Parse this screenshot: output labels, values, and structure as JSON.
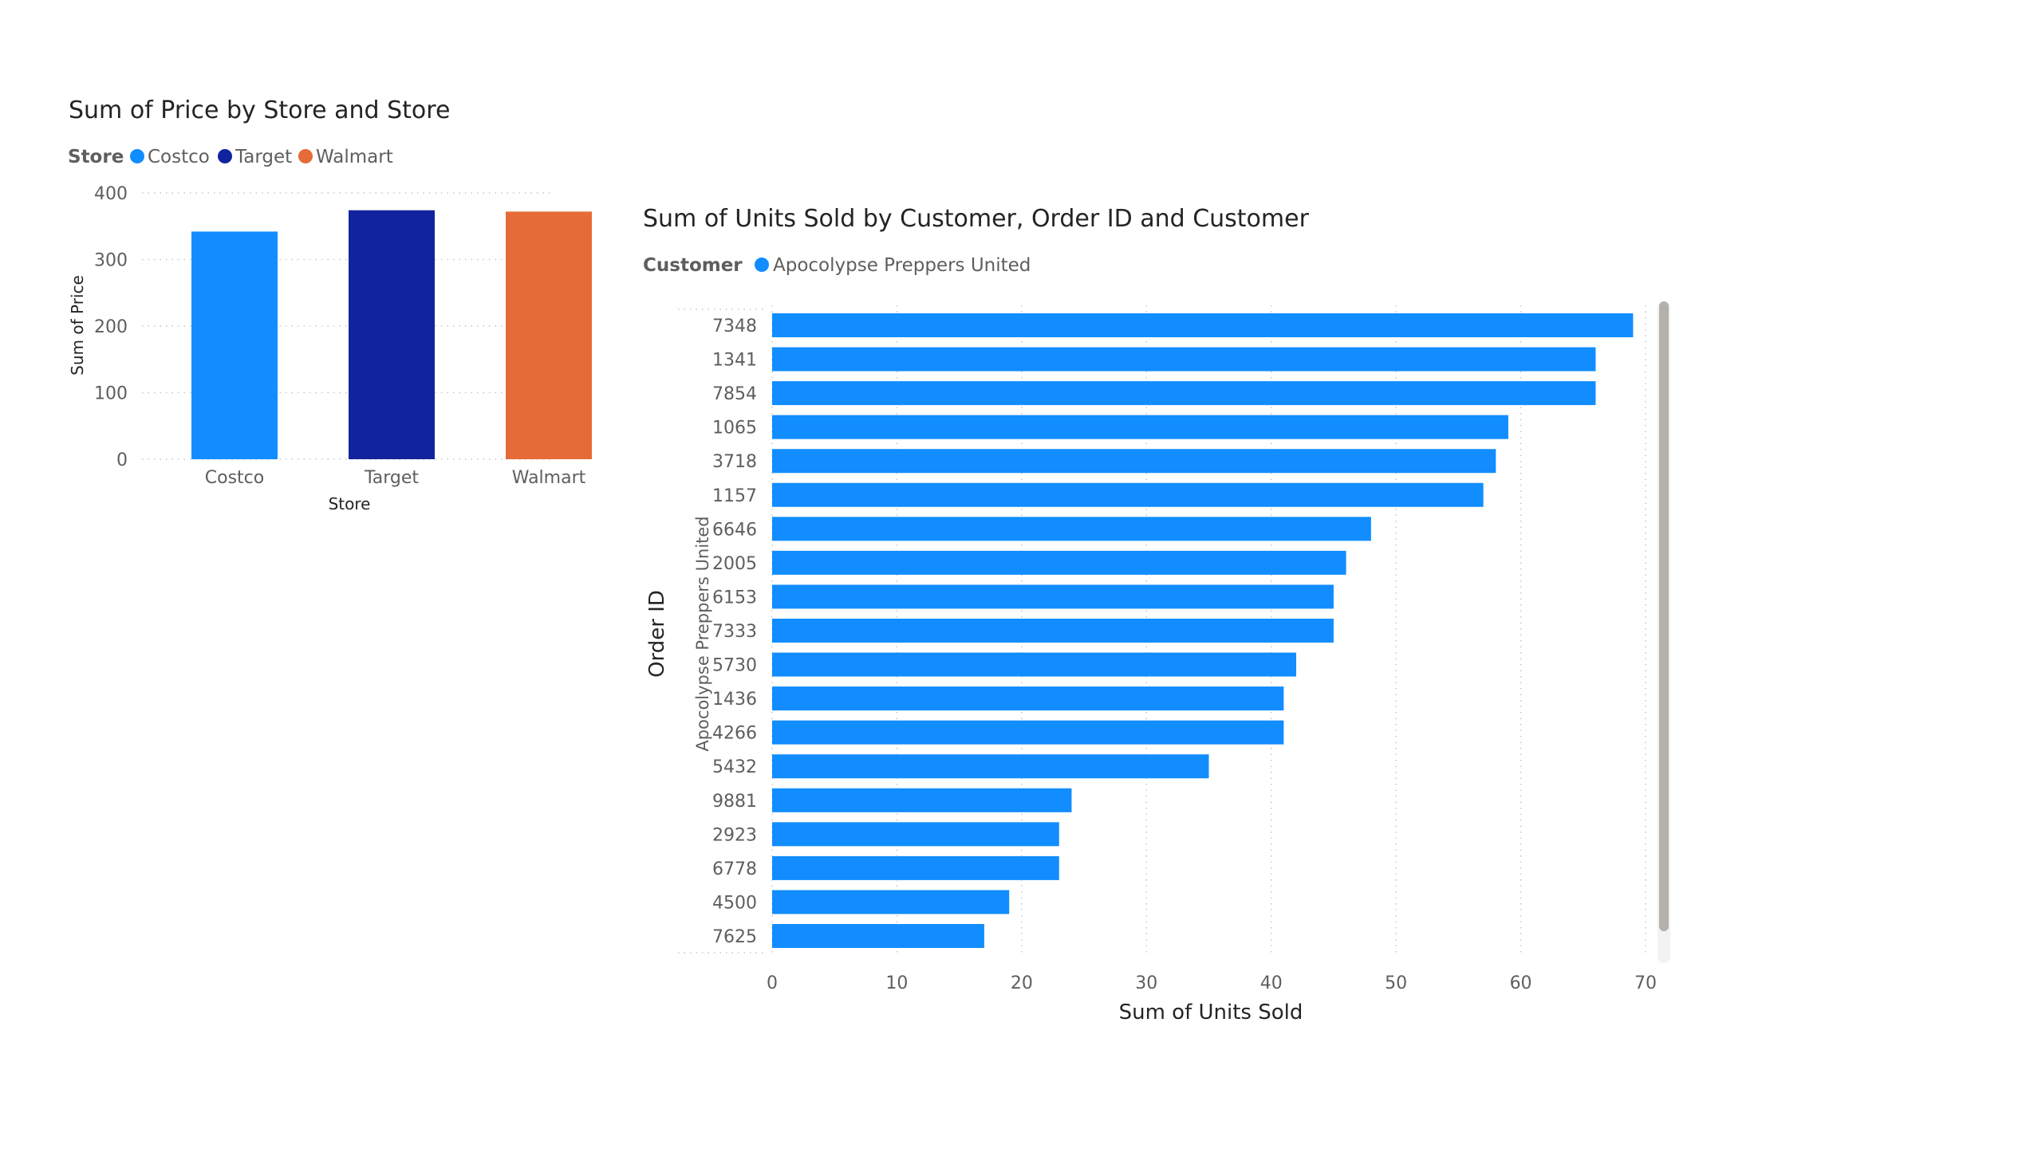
{
  "chart_data": [
    {
      "type": "bar",
      "title": "Sum of Price by Store and Store",
      "legend": {
        "title": "Store",
        "position": "top-left",
        "items": [
          {
            "label": "Costco",
            "color": "#118DFF"
          },
          {
            "label": "Target",
            "color": "#12239E"
          },
          {
            "label": "Walmart",
            "color": "#E66C37"
          }
        ]
      },
      "xlabel": "Store",
      "ylabel": "Sum of Price",
      "ylim": [
        0,
        400
      ],
      "yticks": [
        "0",
        "100",
        "200",
        "300",
        "400"
      ],
      "yticks_values": [
        0,
        100,
        200,
        300,
        400
      ],
      "categories": [
        "Costco",
        "Target",
        "Walmart"
      ],
      "values": [
        342,
        374,
        372
      ],
      "colors": [
        "#118DFF",
        "#12239E",
        "#E66C37"
      ],
      "grid": true
    },
    {
      "type": "bar",
      "orientation": "horizontal",
      "title": "Sum of Units Sold by Customer, Order ID and Customer",
      "legend": {
        "title": "Customer",
        "position": "top-left",
        "items": [
          {
            "label": "Apocolypse Preppers United",
            "color": "#118DFF"
          }
        ]
      },
      "xlabel": "Sum of Units Sold",
      "ylabel": "Order ID",
      "group_label": "Apocolypse Preppers United",
      "xlim": [
        0,
        70
      ],
      "xticks": [
        "0",
        "10",
        "20",
        "30",
        "40",
        "50",
        "60",
        "70"
      ],
      "xticks_values": [
        0,
        10,
        20,
        30,
        40,
        50,
        60,
        70
      ],
      "categories": [
        "7348",
        "1341",
        "7854",
        "1065",
        "3718",
        "1157",
        "6646",
        "2005",
        "6153",
        "7333",
        "5730",
        "1436",
        "4266",
        "5432",
        "9881",
        "2923",
        "6778",
        "4500",
        "7625"
      ],
      "values": [
        69,
        66,
        66,
        59,
        58,
        57,
        48,
        46,
        45,
        45,
        42,
        41,
        41,
        35,
        24,
        23,
        23,
        19,
        17
      ],
      "color": "#118DFF",
      "grid": true
    }
  ]
}
